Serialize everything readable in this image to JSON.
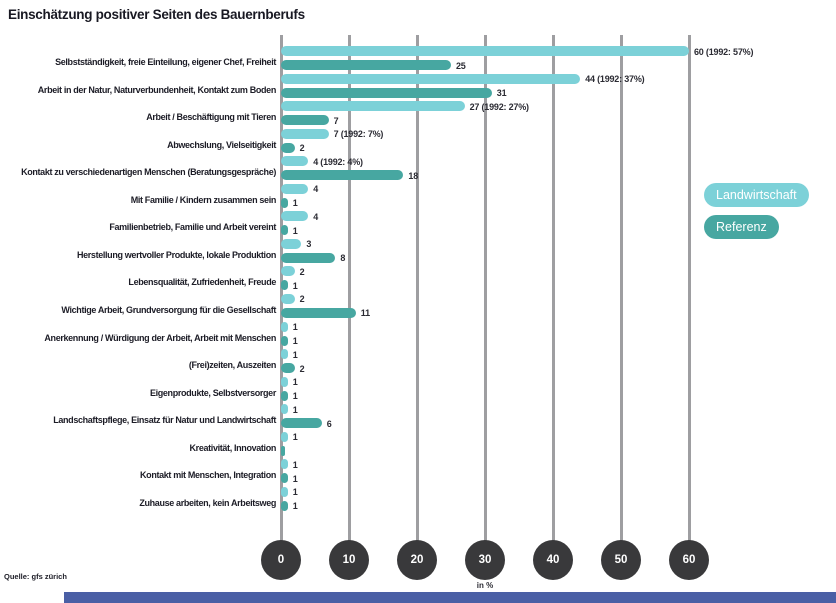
{
  "chart_data": {
    "type": "bar",
    "orientation": "horizontal-grouped",
    "title": "Einschätzung positiver Seiten des Bauernberufs",
    "xlabel": "in %",
    "xlim": [
      0,
      60
    ],
    "x_ticks": [
      0,
      10,
      20,
      30,
      40,
      50,
      60
    ],
    "grid": true,
    "legend_position": "right",
    "categories": [
      "Selbstständigkeit, freie Einteilung, eigener Chef, Freiheit",
      "Arbeit in der Natur, Naturverbundenheit, Kontakt zum Boden",
      "Arbeit / Beschäftigung mit Tieren",
      "Abwechslung, Vielseitigkeit",
      "Kontakt zu verschiedenartigen Menschen (Beratungsgespräche)",
      "Mit Familie / Kindern zusammen sein",
      "Familienbetrieb, Familie und Arbeit vereint",
      "Herstellung wertvoller Produkte, lokale Produktion",
      "Lebensqualität, Zufriedenheit, Freude",
      "Wichtige Arbeit, Grundversorgung für die Gesellschaft",
      "Anerkennung / Würdigung der Arbeit, Arbeit mit Menschen",
      "(Frei)zeiten, Auszeiten",
      "Eigenprodukte, Selbstversorger",
      "Landschaftspflege, Einsatz für Natur und Landwirtschaft",
      "Kreativität, Innovation",
      "Kontakt mit Menschen, Integration",
      "Zuhause arbeiten, kein Arbeitsweg"
    ],
    "series": [
      {
        "name": "Landwirtschaft",
        "color": "#7cd1d8",
        "values": [
          60,
          44,
          27,
          7,
          4,
          4,
          4,
          3,
          2,
          2,
          1,
          1,
          1,
          1,
          1,
          1,
          1
        ],
        "bar_labels": [
          "60 (1992: 57%)",
          "44 (1992: 37%)",
          "27 (1992: 27%)",
          "7 (1992: 7%)",
          "4 (1992: 4%)",
          "4",
          "4",
          "3",
          "2",
          "2",
          "1",
          "1",
          "1",
          "1",
          "1",
          "1",
          "1"
        ]
      },
      {
        "name": "Referenz",
        "color": "#47a7a1",
        "values": [
          25,
          31,
          7,
          2,
          18,
          1,
          1,
          8,
          1,
          11,
          1,
          2,
          1,
          6,
          0,
          1,
          1
        ],
        "bar_labels": [
          "25",
          "31",
          "7",
          "2",
          "18",
          "1",
          "1",
          "8",
          "1",
          "11",
          "1",
          "2",
          "1",
          "6",
          "",
          "1",
          "1"
        ]
      }
    ]
  },
  "legend": {
    "items": [
      {
        "label": "Landwirtschaft",
        "color": "#7cd1d8"
      },
      {
        "label": "Referenz",
        "color": "#47a7a1"
      }
    ]
  },
  "footer": {
    "source": "Quelle: gfs zürich"
  },
  "colors": {
    "tick_circle": "#39393b",
    "gridline": "#9e9ea1",
    "bottom_accent": "#4a5fa5",
    "text": "#1c1c26"
  }
}
